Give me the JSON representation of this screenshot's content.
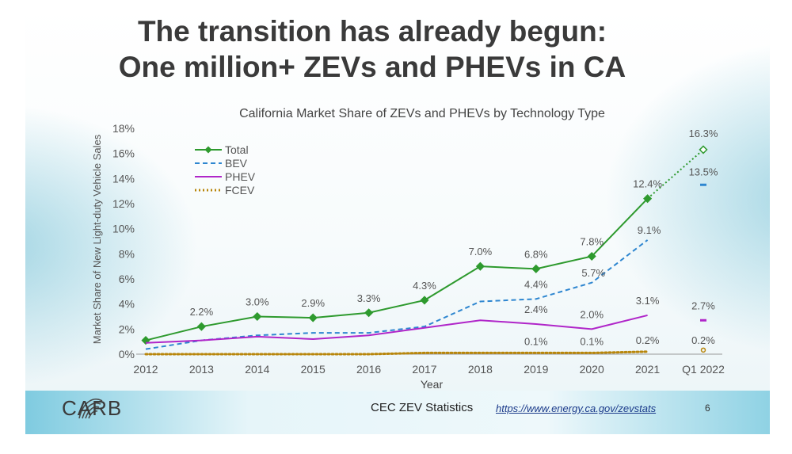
{
  "slide": {
    "title_line1": "The transition has already begun:",
    "title_line2": "One million+ ZEVs and PHEVs in CA",
    "logo_text": "CARB",
    "source_label": "CEC ZEV Statistics",
    "source_url": "https://www.energy.ca.gov/zevstats",
    "page_number": "6"
  },
  "chart_data": {
    "type": "line",
    "title": "California Market Share of ZEVs and PHEVs by Technology Type",
    "xlabel": "Year",
    "ylabel": "Market Share of New Light-duty Vehicle Sales",
    "categories": [
      "2012",
      "2013",
      "2014",
      "2015",
      "2016",
      "2017",
      "2018",
      "2019",
      "2020",
      "2021",
      "Q1 2022"
    ],
    "ylim": [
      0,
      18
    ],
    "yticks": [
      0,
      2,
      4,
      6,
      8,
      10,
      12,
      14,
      16,
      18
    ],
    "ytick_labels": [
      "0%",
      "2%",
      "4%",
      "6%",
      "8%",
      "10%",
      "12%",
      "14%",
      "16%",
      "18%"
    ],
    "grid": false,
    "legend_position": "top-left",
    "series": [
      {
        "name": "Total",
        "color": "#2e9a2e",
        "style": "solid-diamond",
        "values": [
          1.1,
          2.2,
          3.0,
          2.9,
          3.3,
          4.3,
          7.0,
          6.8,
          7.8,
          12.4,
          16.3
        ],
        "labels": [
          "",
          "2.2%",
          "3.0%",
          "2.9%",
          "3.3%",
          "4.3%",
          "7.0%",
          "6.8%",
          "7.8%",
          "12.4%",
          "16.3%"
        ]
      },
      {
        "name": "BEV",
        "color": "#2e86d0",
        "style": "dashed",
        "values": [
          0.4,
          1.1,
          1.5,
          1.7,
          1.7,
          2.2,
          4.2,
          4.4,
          5.7,
          9.1,
          13.5
        ],
        "labels": [
          "",
          "",
          "",
          "",
          "",
          "",
          "",
          "4.4%",
          "5.7%",
          "9.1%",
          "13.5%"
        ]
      },
      {
        "name": "PHEV",
        "color": "#b026c9",
        "style": "solid",
        "values": [
          0.9,
          1.1,
          1.4,
          1.2,
          1.5,
          2.1,
          2.7,
          2.4,
          2.0,
          3.1,
          2.7
        ],
        "labels": [
          "",
          "",
          "",
          "",
          "",
          "",
          "",
          "2.4%",
          "2.0%",
          "3.1%",
          "2.7%"
        ]
      },
      {
        "name": "FCEV",
        "color": "#b8860b",
        "style": "dotted",
        "values": [
          0.0,
          0.0,
          0.0,
          0.0,
          0.0,
          0.1,
          0.1,
          0.1,
          0.1,
          0.2,
          0.2
        ],
        "labels": [
          "",
          "",
          "",
          "",
          "",
          "",
          "",
          "0.1%",
          "0.1%",
          "0.2%",
          "0.2%"
        ]
      }
    ]
  }
}
